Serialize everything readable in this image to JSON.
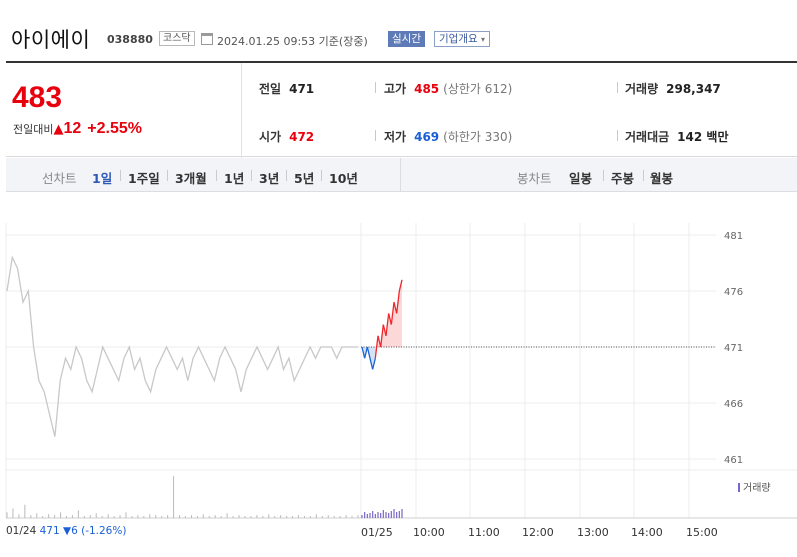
{
  "header": {
    "name": "아이에이",
    "code": "038880",
    "market": "코스닥",
    "datetime": "2024.01.25 09:53 기준(장중)",
    "live_badge": "실시간",
    "overview_label": "기업개요",
    "overview_caret": "▾"
  },
  "price": {
    "current": "483",
    "change_label": "전일대비",
    "change_arrow": "▲",
    "change_value": "12",
    "change_percent": "+2.55%"
  },
  "stats": {
    "prev_label": "전일",
    "prev_value": "471",
    "open_label": "시가",
    "open_value": "472",
    "high_label": "고가",
    "high_value": "485",
    "upper_limit": "(상한가 612)",
    "low_label": "저가",
    "low_value": "469",
    "lower_limit": "(하한가 330)",
    "volume_label": "거래량",
    "volume_value": "298,347",
    "amount_label": "거래대금",
    "amount_value": "142 백만"
  },
  "periods": {
    "line_label": "선차트",
    "line_items": [
      "1일",
      "1주일",
      "3개월",
      "1년",
      "3년",
      "5년",
      "10년"
    ],
    "active": "1일",
    "candle_label": "봉차트",
    "candle_items": [
      "일봉",
      "주봉",
      "월봉"
    ]
  },
  "chart_data": {
    "type": "line",
    "y_ticks": [
      "481",
      "476",
      "471",
      "466",
      "461"
    ],
    "ylim": [
      461,
      481
    ],
    "reference_price": 471,
    "x_ticks": [
      "01/24",
      "01/25",
      "10:00",
      "11:00",
      "12:00",
      "13:00",
      "14:00",
      "15:00"
    ],
    "prev_day_series": [
      476,
      479,
      478,
      475,
      476,
      471,
      468,
      467,
      465,
      463,
      468,
      470,
      469,
      471,
      470,
      468,
      467,
      469,
      471,
      470,
      469,
      468,
      470,
      471,
      469,
      470,
      468,
      467,
      469,
      470,
      471,
      470,
      469,
      470,
      468,
      470,
      471,
      470,
      469,
      468,
      470,
      471,
      470,
      469,
      467,
      469,
      470,
      471,
      470,
      469,
      470,
      471,
      469,
      470,
      468,
      469,
      470,
      471,
      470,
      471,
      471,
      471,
      470,
      471,
      471,
      471,
      471
    ],
    "today_series": [
      471,
      470,
      471,
      470,
      469,
      470,
      472,
      471,
      473,
      472,
      474,
      473,
      475,
      474,
      476,
      477
    ],
    "up_color": "#f0262c",
    "down_color": "#1a64d1",
    "prev_color": "#c8c8c8",
    "volume_label": "거래량",
    "volume_color": "#7a66c8",
    "prev_close_text": "471",
    "prev_change_text": "▼6 (-1.26%)"
  }
}
